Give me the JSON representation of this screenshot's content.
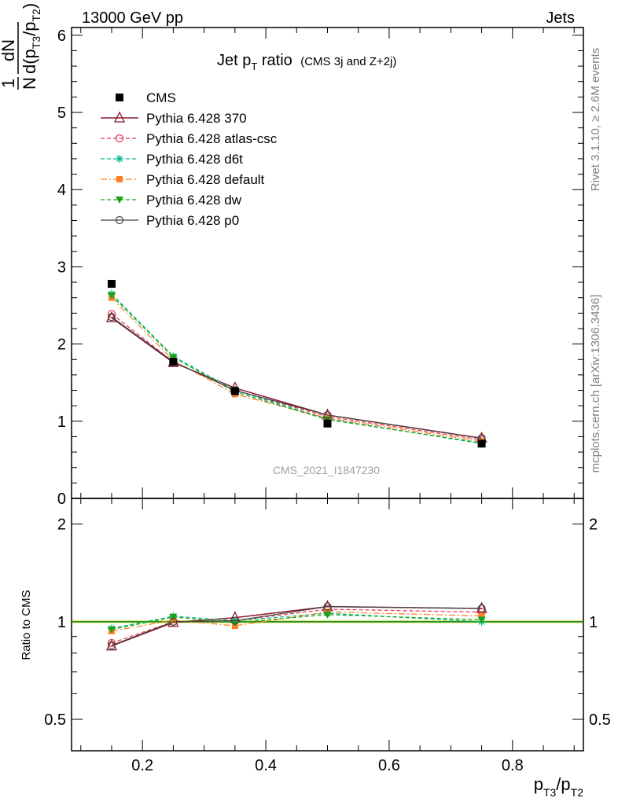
{
  "header": {
    "left": "13000 GeV pp",
    "right": "Jets"
  },
  "side_text": {
    "rivet": "Rivet 3.1.10, ≥ 2.6M events",
    "mcplots": "mcplots.cern.ch [arXiv:1306.3436]"
  },
  "chart_data": {
    "type": "line",
    "title": {
      "main": "Jet p",
      "main_sub": "T",
      "main_rest": " ratio",
      "small": "(CMS 3j and Z+2j)"
    },
    "watermark": "CMS_2021_I1847230",
    "ylabel": {
      "frac_num": "1",
      "frac_den": "N",
      "dN": "dN",
      "d_open": "d(p",
      "sub1": "T3",
      "mid": "/p",
      "sub2": "T2",
      "close": ")"
    },
    "xlabel": {
      "p1": "p",
      "sub1": "T3",
      "mid": "/p",
      "sub2": "T2"
    },
    "ratio_ylabel": "Ratio to CMS",
    "xlim": [
      0.085,
      0.915
    ],
    "ylim_main": [
      0,
      6.1
    ],
    "ylim_ratio": [
      0.4,
      2.4
    ],
    "ratio_scale": "log",
    "main_yticks": [
      {
        "v": 0,
        "label": "0"
      },
      {
        "v": 1,
        "label": "1"
      },
      {
        "v": 2,
        "label": "2"
      },
      {
        "v": 3,
        "label": "3"
      },
      {
        "v": 4,
        "label": "4"
      },
      {
        "v": 5,
        "label": "5"
      },
      {
        "v": 6,
        "label": "6"
      }
    ],
    "ratio_yticks": [
      {
        "v": 0.5,
        "label": "0.5"
      },
      {
        "v": 1,
        "label": "1"
      },
      {
        "v": 2,
        "label": "2"
      }
    ],
    "xticks": [
      {
        "v": 0.2,
        "label": "0.2"
      },
      {
        "v": 0.4,
        "label": "0.4"
      },
      {
        "v": 0.6,
        "label": "0.6"
      },
      {
        "v": 0.8,
        "label": "0.8"
      }
    ],
    "x": [
      0.15,
      0.25,
      0.35,
      0.5,
      0.75
    ],
    "data": {
      "name": "CMS",
      "values": [
        2.78,
        1.77,
        1.39,
        0.97,
        0.71
      ],
      "color": "#000000"
    },
    "series": [
      {
        "name": "Pythia 6.428 370",
        "values": [
          2.34,
          1.76,
          1.43,
          1.08,
          0.78
        ],
        "color": "#8b1a2b",
        "dash": "",
        "marker": "triangle-open",
        "width": 1.5
      },
      {
        "name": "Pythia 6.428 atlas-csc",
        "values": [
          2.39,
          1.77,
          1.4,
          1.06,
          0.76
        ],
        "color": "#e8304c",
        "dash": "5,3",
        "marker": "circle-open",
        "width": 1.2
      },
      {
        "name": "Pythia 6.428 d6t",
        "values": [
          2.65,
          1.84,
          1.4,
          1.03,
          0.71
        ],
        "color": "#00b88a",
        "dash": "5,3",
        "marker": "star",
        "width": 1.2
      },
      {
        "name": "Pythia 6.428 default",
        "values": [
          2.6,
          1.79,
          1.35,
          1.04,
          0.74
        ],
        "color": "#ff7f24",
        "dash": "8,3,2,3",
        "marker": "square",
        "width": 1.2
      },
      {
        "name": "Pythia 6.428 dw",
        "values": [
          2.63,
          1.83,
          1.38,
          1.02,
          0.72
        ],
        "color": "#1aa31a",
        "dash": "5,3",
        "marker": "triangle-down",
        "width": 1.2
      },
      {
        "name": "Pythia 6.428 p0",
        "values": [
          2.35,
          1.77,
          1.4,
          1.08,
          0.78
        ],
        "color": "#444444",
        "dash": "",
        "marker": "circle-open",
        "width": 1.2
      }
    ],
    "legend_placement": "top-left"
  }
}
